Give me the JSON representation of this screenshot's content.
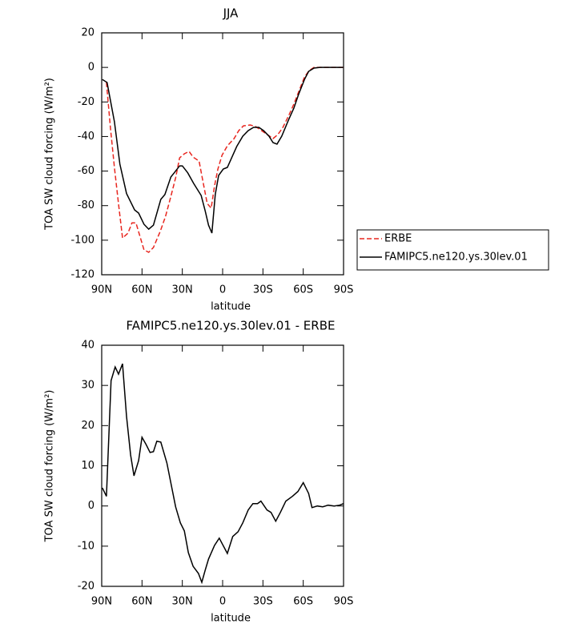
{
  "chart_data": [
    {
      "type": "line",
      "title": "JJA",
      "x_label": "latitude",
      "y_label": "TOA SW cloud forcing (W/m²)",
      "xlim": [
        90,
        -90
      ],
      "xticks": [
        {
          "value": 90,
          "label": "90N"
        },
        {
          "value": 60,
          "label": "60N"
        },
        {
          "value": 30,
          "label": "30N"
        },
        0,
        {
          "value": -30,
          "label": "30S"
        },
        {
          "value": -60,
          "label": "60S"
        },
        {
          "value": -90,
          "label": "90S"
        }
      ],
      "ylim": [
        -120,
        20
      ],
      "yticks": [
        -120,
        -100,
        -80,
        -60,
        -40,
        -20,
        0,
        20
      ],
      "legend": "outside-right",
      "series": [
        {
          "name": "ERBE",
          "color": "#e8261f",
          "style": "dashed",
          "x": [
            86.5,
            83.5,
            80.5,
            77.5,
            74.5,
            70.5,
            67.5,
            64.5,
            61.5,
            58.5,
            55,
            51.5,
            46.5,
            42.5,
            38.5,
            35,
            32,
            28.5,
            25,
            22,
            17.5,
            14.5,
            11.5,
            8.5,
            6,
            3.5,
            0.5,
            -3.5,
            -8.5,
            -12,
            -15.5,
            -20.5,
            -24.5,
            -29,
            -34,
            -37.5,
            -41,
            -44.5,
            -49,
            -53,
            -57,
            -61,
            -64.5,
            -68,
            -74,
            -80,
            -86,
            -89.5
          ],
          "values": [
            -8.7,
            -35,
            -58,
            -79,
            -98.7,
            -96,
            -90,
            -90,
            -97.8,
            -105.6,
            -107,
            -104.2,
            -95,
            -86.2,
            -74.6,
            -63.9,
            -52.3,
            -50,
            -48.6,
            -51.9,
            -54.2,
            -66.7,
            -78.7,
            -81.5,
            -68.5,
            -58.8,
            -50.9,
            -45.4,
            -41.2,
            -36.6,
            -33.8,
            -33.3,
            -34.2,
            -36.6,
            -39.3,
            -41.2,
            -38.9,
            -35.2,
            -28.2,
            -21.3,
            -13.4,
            -5.5,
            -1.8,
            0,
            0,
            0,
            0,
            0
          ]
        },
        {
          "name": "FAMIPC5.ne120.ys.30lev.01",
          "color": "#000000",
          "style": "solid",
          "x": [
            89.5,
            86,
            80.5,
            76.5,
            71.5,
            65.5,
            62.5,
            58.5,
            55,
            51.5,
            46,
            43,
            38.5,
            36,
            32,
            30,
            26,
            21.5,
            16,
            13,
            10.5,
            8,
            5.5,
            3,
            -0.5,
            -3.5,
            -7,
            -10.5,
            -15,
            -19,
            -23,
            -27,
            -30.5,
            -34.5,
            -37.5,
            -40.5,
            -44,
            -49,
            -53,
            -56.5,
            -61,
            -64,
            -68,
            -72.5,
            -78.5,
            -84.5,
            -89.5
          ],
          "values": [
            -7,
            -8.7,
            -31.5,
            -56,
            -73,
            -82.5,
            -84.3,
            -90.8,
            -93.6,
            -91.3,
            -76.4,
            -73.6,
            -63.4,
            -61,
            -57,
            -57,
            -61,
            -67.2,
            -74.1,
            -83,
            -91.3,
            -95.9,
            -73.6,
            -62.5,
            -58.8,
            -57.9,
            -51.9,
            -45.8,
            -39.8,
            -36.6,
            -34.7,
            -34.7,
            -36.6,
            -39.8,
            -43.5,
            -44.4,
            -39.8,
            -30.5,
            -23.6,
            -15.7,
            -6.9,
            -2.3,
            -0.4,
            0,
            0,
            0,
            0
          ]
        }
      ]
    },
    {
      "type": "line",
      "title": "FAMIPC5.ne120.ys.30lev.01 - ERBE",
      "x_label": "latitude",
      "y_label": "TOA SW cloud forcing (W/m²)",
      "xlim": [
        90,
        -90
      ],
      "xticks": [
        {
          "value": 90,
          "label": "90N"
        },
        {
          "value": 60,
          "label": "60N"
        },
        {
          "value": 30,
          "label": "30N"
        },
        0,
        {
          "value": -30,
          "label": "30S"
        },
        {
          "value": -60,
          "label": "60S"
        },
        {
          "value": -90,
          "label": "90S"
        }
      ],
      "ylim": [
        -20,
        40
      ],
      "yticks": [
        -20,
        -10,
        0,
        10,
        20,
        30,
        40
      ],
      "color": "#000000",
      "x": [
        89.5,
        86.5,
        83,
        80,
        77.5,
        74.5,
        71.5,
        68.5,
        66,
        62.5,
        60,
        57,
        54,
        51.5,
        49,
        46,
        41.5,
        38,
        35,
        31.5,
        28.5,
        25.5,
        22,
        18,
        15.5,
        13,
        10.5,
        6,
        2.5,
        0,
        -3.5,
        -7.5,
        -11.5,
        -15,
        -19,
        -22.5,
        -26,
        -28.5,
        -33,
        -36,
        -39.5,
        -43,
        -47,
        -52,
        -56,
        -60,
        -64,
        -66.5,
        -70.5,
        -74.5,
        -78.5,
        -83,
        -87,
        -90
      ],
      "values": [
        4.5,
        2.4,
        31.2,
        34.6,
        32.8,
        35.4,
        22.3,
        12.7,
        7.5,
        11.3,
        17.1,
        15.3,
        13.3,
        13.5,
        16.1,
        15.9,
        10.7,
        4.9,
        -0.2,
        -4.2,
        -6.2,
        -11.6,
        -15,
        -16.8,
        -19,
        -16,
        -13.2,
        -9.8,
        -8,
        -9.6,
        -11.8,
        -7.6,
        -6.4,
        -4.2,
        -1,
        0.6,
        0.6,
        1.2,
        -1,
        -1.6,
        -3.8,
        -1.6,
        1.2,
        2.4,
        3.6,
        5.8,
        3.1,
        -0.4,
        0,
        -0.2,
        0.2,
        0,
        0.2,
        0.6
      ]
    }
  ]
}
